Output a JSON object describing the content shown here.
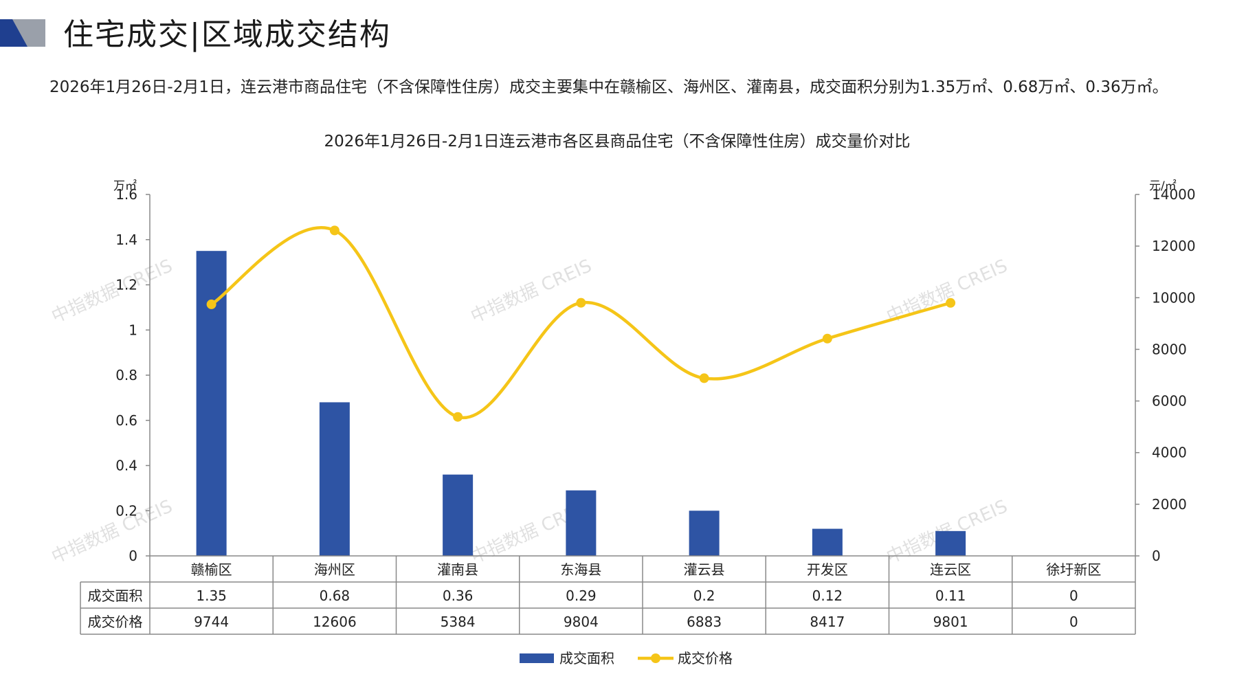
{
  "header": {
    "title": "住宅成交|区域成交结构"
  },
  "summary": "2026年1月26日-2月1日，连云港市商品住宅（不含保障性住房）成交主要集中在赣榆区、海州区、灌南县，成交面积分别为1.35万㎡、0.68万㎡、0.36万㎡。",
  "watermark": "中指数据 CREIS",
  "colors": {
    "bar": "#2E54A4",
    "line": "#F5C518",
    "logo_dark": "#1F3F8F",
    "logo_gray": "#9AA0AA"
  },
  "chart_data": {
    "type": "bar+line",
    "title": "2026年1月26日-2月1日连云港市各区县商品住宅（不含保障性住房）成交量价对比",
    "y_left_label": "万㎡",
    "y_right_label": "元/㎡",
    "y_left_ticks": [
      "1.6",
      "1.4",
      "1.2",
      "1",
      "0.8",
      "0.6",
      "0.4",
      "0.2",
      "0"
    ],
    "y_right_ticks": [
      "14000",
      "12000",
      "10000",
      "8000",
      "6000",
      "4000",
      "2000",
      "0"
    ],
    "y_left_range": [
      0,
      1.6
    ],
    "y_right_range": [
      0,
      14000
    ],
    "categories": [
      "赣榆区",
      "海州区",
      "灌南县",
      "东海县",
      "灌云县",
      "开发区",
      "连云区",
      "徐圩新区"
    ],
    "series": [
      {
        "name": "成交面积",
        "type": "bar",
        "axis": "left",
        "values": [
          1.35,
          0.68,
          0.36,
          0.29,
          0.2,
          0.12,
          0.11,
          0
        ],
        "labels": [
          "1.35",
          "0.68",
          "0.36",
          "0.29",
          "0.2",
          "0.12",
          "0.11",
          "0"
        ]
      },
      {
        "name": "成交价格",
        "type": "line",
        "axis": "right",
        "values": [
          9744,
          12606,
          5384,
          9804,
          6883,
          8417,
          9801,
          0
        ],
        "labels": [
          "9744",
          "12606",
          "5384",
          "9804",
          "6883",
          "8417",
          "9801",
          "0"
        ],
        "plotted_points": 7
      }
    ],
    "legend_position": "bottom"
  }
}
